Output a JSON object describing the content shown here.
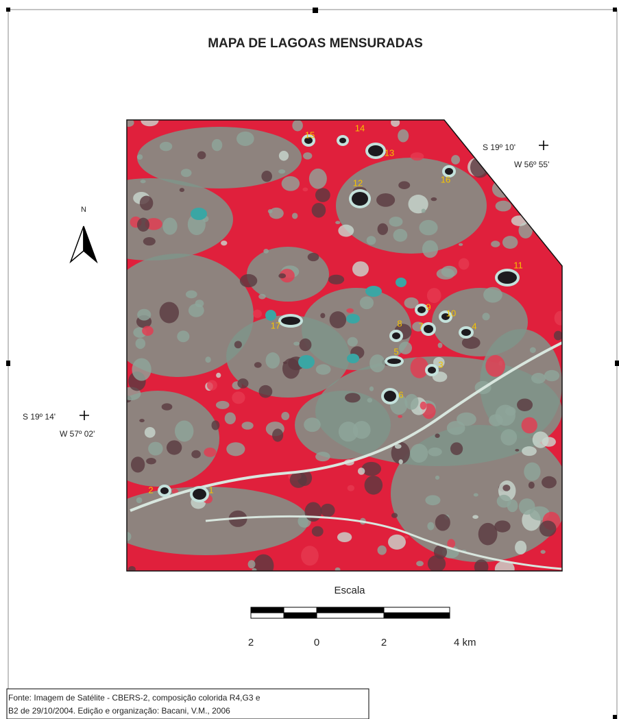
{
  "title": "MAPA DE LAGOAS MENSURADAS",
  "north": "N",
  "coord_ne": {
    "lat": "S 19º 10'",
    "lon": "W 56º 55'"
  },
  "coord_w": {
    "lat": "S 19º 14'",
    "lon": "W 57º 02'"
  },
  "lake_labels": [
    "1",
    "2",
    "3",
    "4",
    "5",
    "6",
    "7",
    "8",
    "9",
    "10",
    "11",
    "12",
    "13",
    "14",
    "15",
    "16",
    "17"
  ],
  "scale": {
    "title": "Escala",
    "labels": [
      "2",
      "0",
      "2",
      "4 km"
    ]
  },
  "source": [
    "Fonte: Imagem de Satélite - CBERS-2, composição colorida R4,G3 e",
    "B2 de 29/10/2004. Edição e organização: Bacani, V.M., 2006"
  ]
}
